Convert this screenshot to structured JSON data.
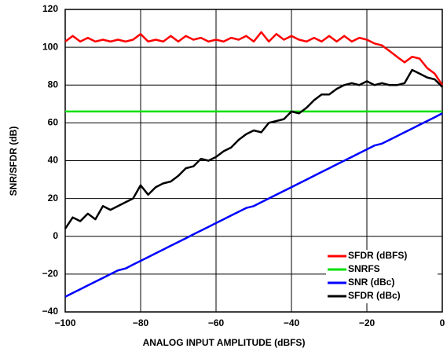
{
  "chart_data": {
    "type": "line",
    "xlabel": "ANALOG INPUT AMPLITUDE (dBFS)",
    "ylabel": "SNR/SFDR (dB)",
    "x": [
      -100,
      -98,
      -96,
      -94,
      -92,
      -90,
      -88,
      -86,
      -84,
      -82,
      -80,
      -78,
      -76,
      -74,
      -72,
      -70,
      -68,
      -66,
      -64,
      -62,
      -60,
      -58,
      -56,
      -54,
      -52,
      -50,
      -48,
      -46,
      -44,
      -42,
      -40,
      -38,
      -36,
      -34,
      -32,
      -30,
      -28,
      -26,
      -24,
      -22,
      -20,
      -18,
      -16,
      -14,
      -12,
      -10,
      -8,
      -6,
      -4,
      -2,
      0
    ],
    "series": [
      {
        "name": "SFDR (dBFS)",
        "color": "#ff0000",
        "values": [
          103,
          106,
          103,
          105,
          103,
          104,
          103,
          104,
          103,
          104,
          107,
          103,
          104,
          103,
          106,
          103,
          106,
          104,
          105,
          103,
          104,
          103,
          105,
          104,
          106,
          103,
          108,
          103,
          107,
          104,
          106,
          104,
          103,
          105,
          103,
          106,
          103,
          106,
          103,
          105,
          104,
          102,
          101,
          98,
          95,
          92,
          95,
          94,
          89,
          86,
          80
        ]
      },
      {
        "name": "SNRFS",
        "color": "#00e000",
        "values": [
          66,
          66,
          66,
          66,
          66,
          66,
          66,
          66,
          66,
          66,
          66,
          66,
          66,
          66,
          66,
          66,
          66,
          66,
          66,
          66,
          66,
          66,
          66,
          66,
          66,
          66,
          66,
          66,
          66,
          66,
          66,
          66,
          66,
          66,
          66,
          66,
          66,
          66,
          66,
          66,
          66,
          66,
          66,
          66,
          66,
          66,
          66,
          66,
          66,
          66,
          66
        ]
      },
      {
        "name": "SNR (dBc)",
        "color": "#0000ff",
        "values": [
          -32,
          -30,
          -28,
          -26,
          -24,
          -22,
          -20,
          -18,
          -17,
          -15,
          -13,
          -11,
          -9,
          -7,
          -5,
          -3,
          -1,
          1,
          3,
          5,
          7,
          9,
          11,
          13,
          15,
          16,
          18,
          20,
          22,
          24,
          26,
          28,
          30,
          32,
          34,
          36,
          38,
          40,
          42,
          44,
          46,
          48,
          49,
          51,
          53,
          55,
          57,
          59,
          61,
          63,
          65
        ]
      },
      {
        "name": "SFDR (dBc)",
        "color": "#000000",
        "values": [
          4,
          10,
          8,
          12,
          9,
          16,
          14,
          16,
          18,
          20,
          27,
          22,
          26,
          28,
          29,
          32,
          36,
          37,
          41,
          40,
          42,
          45,
          47,
          51,
          54,
          56,
          55,
          60,
          61,
          62,
          66,
          65,
          68,
          72,
          75,
          75,
          78,
          80,
          81,
          80,
          82,
          80,
          81,
          80,
          80,
          81,
          88,
          86,
          84,
          83,
          79
        ]
      }
    ],
    "xlim": [
      -100,
      0
    ],
    "xticks": [
      {
        "value": -100,
        "label": "−100"
      },
      {
        "value": -80,
        "label": "−80"
      },
      {
        "value": -60,
        "label": "−60"
      },
      {
        "value": -40,
        "label": "−40"
      },
      {
        "value": -20,
        "label": "−20"
      },
      0
    ],
    "ylim": [
      -40,
      120
    ],
    "yticks": [
      {
        "value": -40,
        "label": "−40"
      },
      {
        "value": -20,
        "label": "−20"
      },
      0,
      20,
      40,
      60,
      80,
      100,
      120
    ],
    "grid": true,
    "legend": "lower-right"
  }
}
